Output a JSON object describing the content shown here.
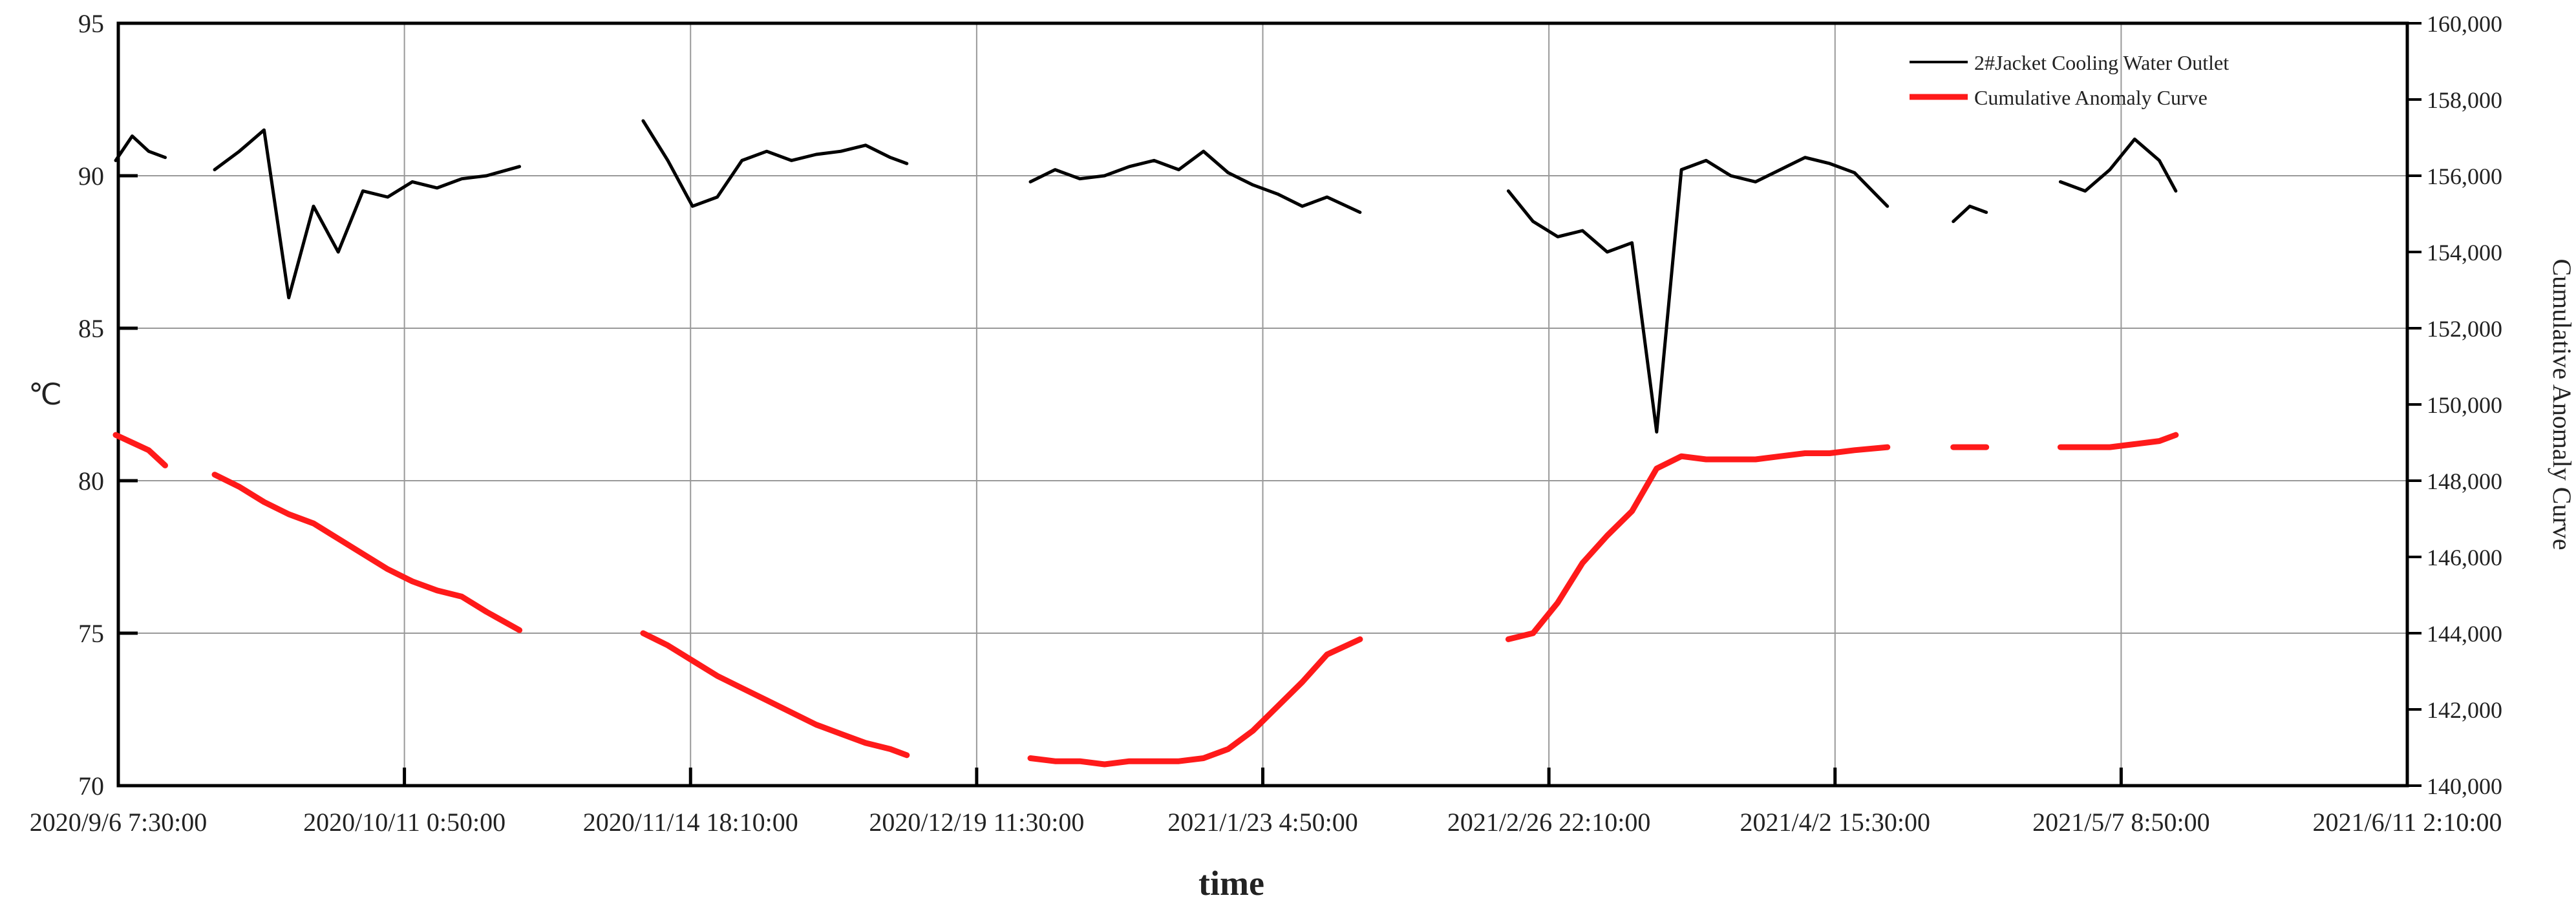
{
  "chart_data": {
    "type": "line",
    "x_label": "time",
    "y_label": "℃",
    "y2_label": "Cumulative Anomaly Curve",
    "grid": true,
    "legend": "upper right",
    "x": [
      "2020/9/6",
      "2020/9/8",
      "2020/9/10",
      "2020/9/12",
      "2020/9/15",
      "2020/9/18",
      "2020/9/21",
      "2020/9/24",
      "2020/9/27",
      "2020/9/30",
      "2020/10/3",
      "2020/10/6",
      "2020/10/9",
      "2020/10/12",
      "2020/10/15",
      "2020/10/18",
      "2020/10/21",
      "2020/10/25",
      "2020/11/1",
      "2020/11/9",
      "2020/11/12",
      "2020/11/15",
      "2020/11/18",
      "2020/11/21",
      "2020/11/24",
      "2020/11/27",
      "2020/11/30",
      "2020/12/3",
      "2020/12/6",
      "2020/12/9",
      "2020/12/11",
      "2020/12/18",
      "2020/12/26",
      "2020/12/29",
      "2021/1/1",
      "2021/1/4",
      "2021/1/7",
      "2021/1/10",
      "2021/1/13",
      "2021/1/16",
      "2021/1/19",
      "2021/1/22",
      "2021/1/25",
      "2021/1/28",
      "2021/1/31",
      "2021/2/4",
      "2021/2/14",
      "2021/2/22",
      "2021/2/25",
      "2021/2/28",
      "2021/3/3",
      "2021/3/6",
      "2021/3/9",
      "2021/3/12",
      "2021/3/15",
      "2021/3/18",
      "2021/3/21",
      "2021/3/24",
      "2021/3/27",
      "2021/3/30",
      "2021/4/2",
      "2021/4/5",
      "2021/4/9",
      "2021/4/13",
      "2021/4/17",
      "2021/4/19",
      "2021/4/21",
      "2021/4/26",
      "2021/4/30",
      "2021/5/3",
      "2021/5/6",
      "2021/5/9",
      "2021/5/12",
      "2021/5/14"
    ],
    "xlim": [
      "2020/9/6 7:30:00",
      "2021/6/11 2:10:00"
    ],
    "xticks": [
      "2020/9/6 7:30:00",
      "2020/10/11 0:50:00",
      "2020/11/14 18:10:00",
      "2020/12/19 11:30:00",
      "2021/1/23 4:50:00",
      "2021/2/26 22:10:00",
      "2021/4/2 15:30:00",
      "2021/5/7 8:50:00",
      "2021/6/11 2:10:00"
    ],
    "ylim": [
      70,
      95
    ],
    "yticks": [
      70,
      75,
      80,
      85,
      90,
      95
    ],
    "y2lim": [
      140000,
      160000
    ],
    "y2ticks": [
      {
        "value": 140000,
        "label": "140,000"
      },
      {
        "value": 142000,
        "label": "142,000"
      },
      {
        "value": 144000,
        "label": "144,000"
      },
      {
        "value": 146000,
        "label": "146,000"
      },
      {
        "value": 148000,
        "label": "148,000"
      },
      {
        "value": 150000,
        "label": "150,000"
      },
      {
        "value": 152000,
        "label": "152,000"
      },
      {
        "value": 154000,
        "label": "154,000"
      },
      {
        "value": 156000,
        "label": "156,000"
      },
      {
        "value": 158000,
        "label": "158,000"
      },
      {
        "value": 160000,
        "label": "160,000"
      }
    ],
    "series": [
      {
        "name": "2#Jacket Cooling Water Outlet",
        "color": "#000000",
        "axis": "y",
        "values": [
          90.5,
          91.3,
          90.8,
          90.6,
          null,
          90.2,
          90.8,
          91.5,
          86.0,
          89.0,
          87.5,
          89.5,
          89.3,
          89.8,
          89.6,
          89.9,
          90.0,
          90.3,
          null,
          91.8,
          90.5,
          89.0,
          89.3,
          90.5,
          90.8,
          90.5,
          90.7,
          90.8,
          91.0,
          90.6,
          90.4,
          null,
          89.8,
          90.2,
          89.9,
          90.0,
          90.3,
          90.5,
          90.2,
          90.8,
          90.1,
          89.7,
          89.4,
          89.0,
          89.3,
          88.8,
          null,
          89.5,
          88.5,
          88.0,
          88.2,
          87.5,
          87.8,
          81.6,
          90.2,
          90.5,
          90.0,
          89.8,
          90.2,
          90.6,
          90.4,
          90.1,
          89.0,
          null,
          88.5,
          89.0,
          88.8,
          null,
          89.8,
          89.5,
          90.2,
          91.2,
          90.5,
          89.5
        ]
      },
      {
        "name": "Cumulative Anomaly Curve",
        "color": "#ff1a1a",
        "axis": "y2",
        "values": [
          149200,
          149000,
          148800,
          148400,
          null,
          148160,
          147840,
          147440,
          147120,
          146880,
          146480,
          146080,
          145680,
          145360,
          145120,
          144960,
          144560,
          144080,
          null,
          144000,
          143680,
          143280,
          142880,
          142560,
          142240,
          141920,
          141600,
          141360,
          141120,
          140960,
          140800,
          null,
          140720,
          140640,
          140640,
          140560,
          140640,
          140640,
          140640,
          140720,
          140960,
          141440,
          142080,
          142720,
          143440,
          143840,
          null,
          143840,
          144000,
          144800,
          145840,
          146560,
          147200,
          148320,
          148640,
          148560,
          148560,
          148560,
          148640,
          148720,
          148720,
          148800,
          148880,
          null,
          148880,
          148880,
          148880,
          null,
          148880,
          148880,
          148880,
          148960,
          149040,
          149200
        ]
      }
    ]
  }
}
